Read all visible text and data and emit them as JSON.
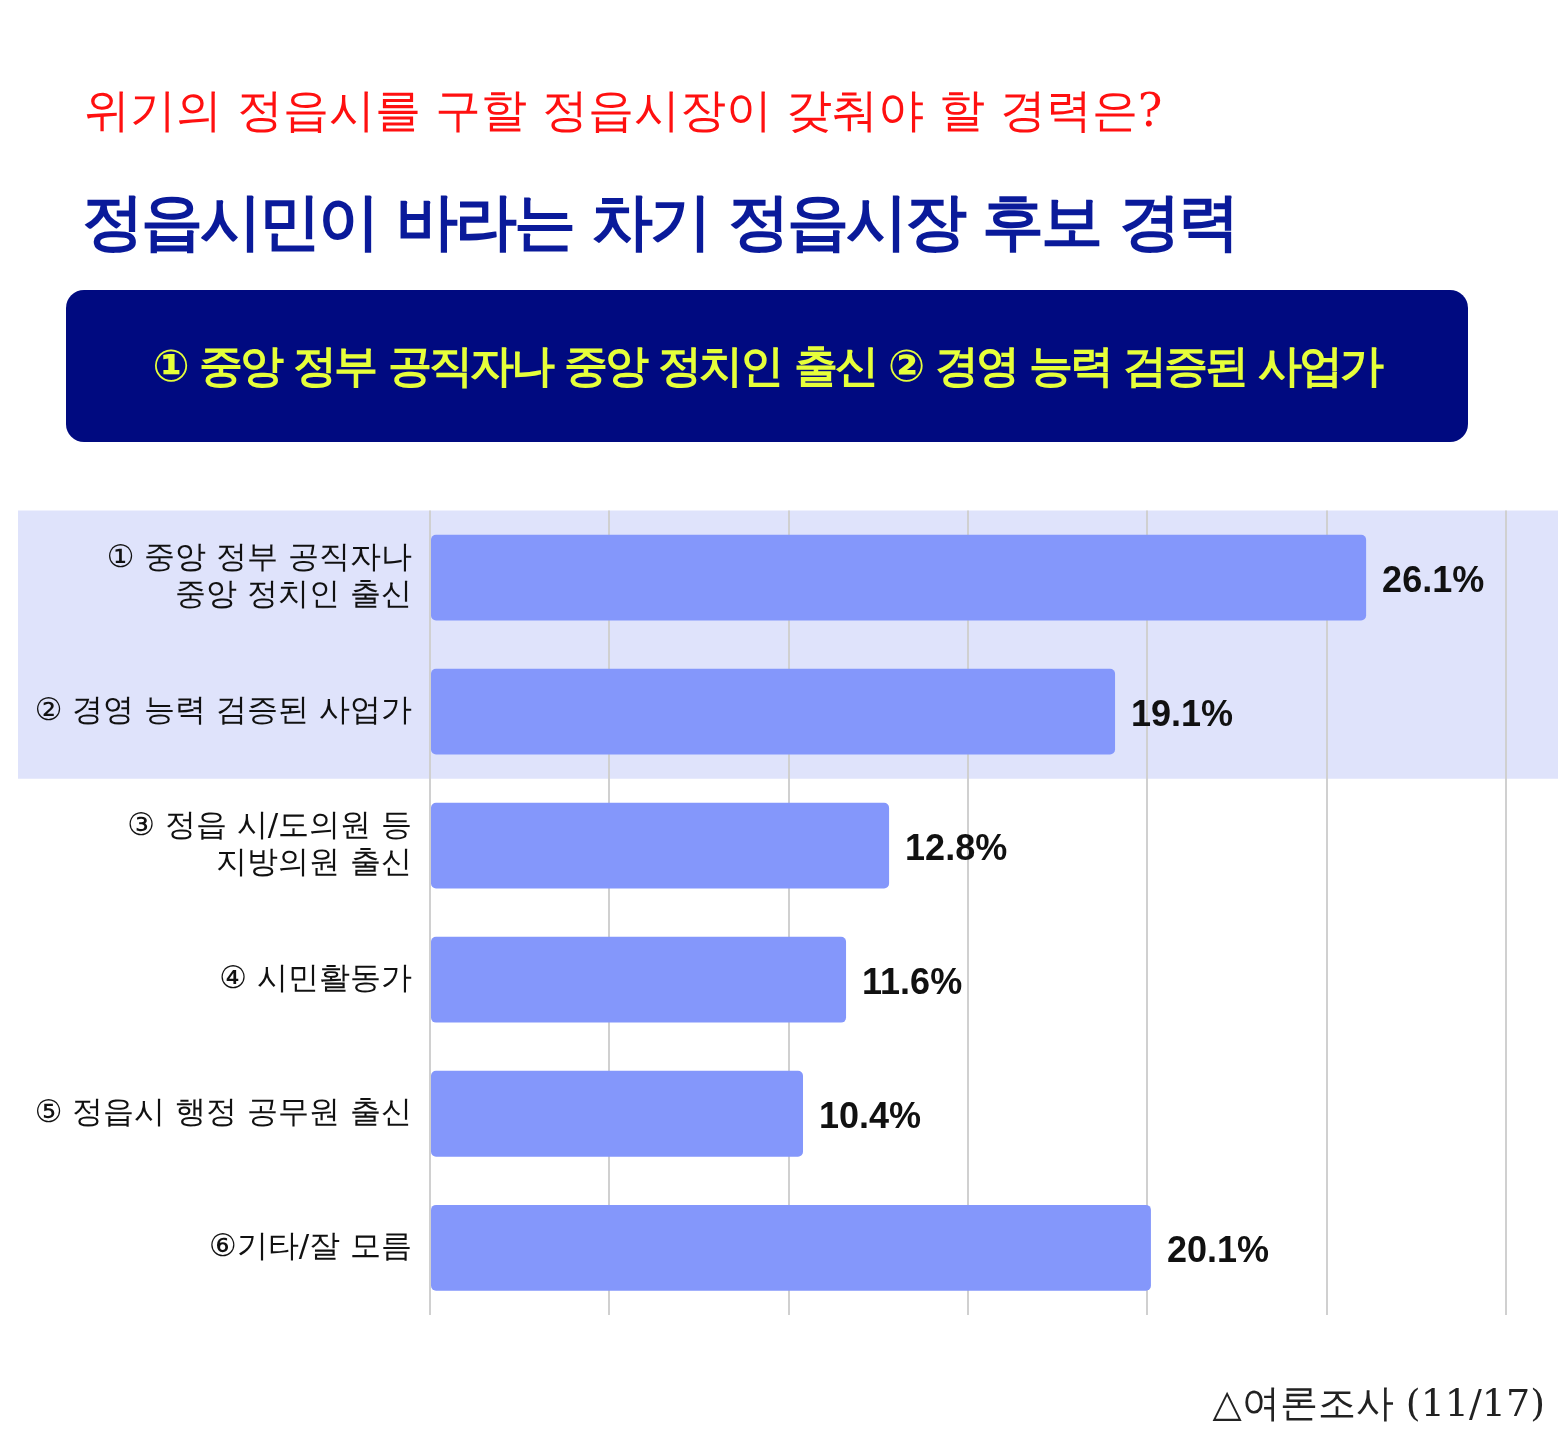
{
  "chart_data": {
    "type": "bar",
    "orientation": "horizontal",
    "title": "위기의 정읍시를 구할 정읍시장이 갖춰야 할 경력은?",
    "subtitle": "정읍시민이 바라는 차기 정읍시장 후보 경력",
    "categories": [
      "① 중앙 정부 공직자나\n중앙 정치인 출신",
      "② 경영 능력 검증된 사업가",
      "③ 정읍 시/도의원 등\n지방의원 출신",
      "④ 시민활동가",
      "⑤ 정읍시 행정 공무원 출신",
      "⑥기타/잘 모름"
    ],
    "values": [
      26.1,
      19.1,
      12.8,
      11.6,
      10.4,
      20.1
    ],
    "value_labels": [
      "26.1%",
      "19.1%",
      "12.8%",
      "11.6%",
      "10.4%",
      "20.1%"
    ],
    "color": "#8497fb",
    "tick_labels": "y",
    "grid": "x",
    "legend": false,
    "bands": [
      {
        "axis": "y",
        "from": "① 중앙 정부 공직자나\n중앙 정치인 출신",
        "to": "② 경영 능력 검증된 사업가",
        "color": "#dfe3fb"
      }
    ],
    "annotations": [
      "① 중앙 정부 공직자나 중앙 정치인 출신   ② 경영 능력 검증된 사업가",
      "△여론조사 (11/17)"
    ]
  }
}
